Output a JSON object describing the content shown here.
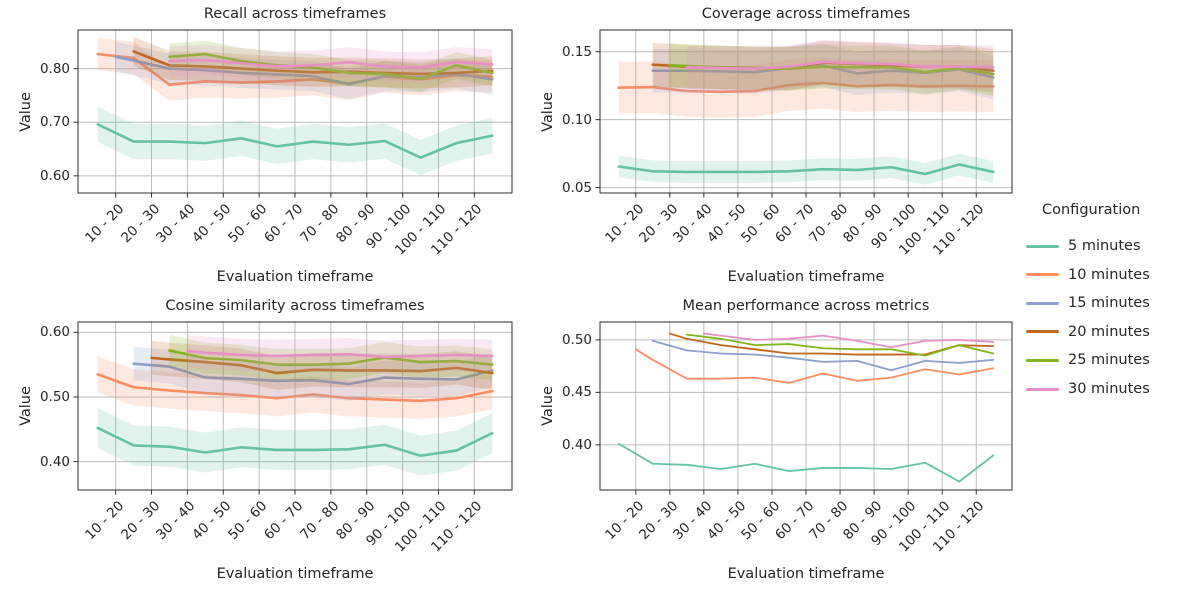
{
  "figure": {
    "background": "#ffffff",
    "text_color": "#262626",
    "grid_color": "#bdbdbd",
    "spine_color": "#2e2e2e"
  },
  "x_axis": {
    "label": "Evaluation timeframe",
    "xlim": [
      4.5,
      125.5
    ],
    "tick_positions": [
      15,
      25,
      35,
      45,
      55,
      65,
      75,
      85,
      95,
      105,
      115
    ],
    "tick_labels": [
      "10 - 20",
      "20 - 30",
      "30 - 40",
      "40 - 50",
      "50 - 60",
      "60 - 70",
      "70 - 80",
      "80 - 90",
      "90 - 100",
      "100 - 110",
      "110 - 120"
    ]
  },
  "y_axis_label": "Value",
  "legend": {
    "title": "Configuration",
    "items": [
      {
        "label": "5 minutes",
        "color": "#66c2a5"
      },
      {
        "label": "10 minutes",
        "color": "#fc8d62"
      },
      {
        "label": "15 minutes",
        "color": "#8da0cb"
      },
      {
        "label": "20 minutes",
        "color": "#c0661f"
      },
      {
        "label": "25 minutes",
        "color": "#84b41e"
      },
      {
        "label": "30 minutes",
        "color": "#e88fc6"
      }
    ]
  },
  "chart_data": [
    {
      "type": "line",
      "title": "Recall across timeframes",
      "xlabel": "Evaluation timeframe",
      "ylabel": "Value",
      "grid": true,
      "line_width": 2.6,
      "ylim": [
        0.568,
        0.872
      ],
      "yticks": [
        0.6,
        0.7,
        0.8
      ],
      "ytick_labels": [
        "0.60",
        "0.70",
        "0.80"
      ],
      "series": [
        {
          "name": "5 minutes",
          "color": "#66c2a5",
          "x_start": 10,
          "band": 0.033,
          "values": [
            0.696,
            0.664,
            0.664,
            0.661,
            0.67,
            0.655,
            0.664,
            0.658,
            0.665,
            0.634,
            0.661,
            0.675
          ]
        },
        {
          "name": "10 minutes",
          "color": "#fc8d62",
          "x_start": 10,
          "band": 0.03,
          "values": [
            0.827,
            0.82,
            0.77,
            0.776,
            0.774,
            0.776,
            0.78,
            0.772,
            0.785,
            0.78,
            0.788,
            0.785
          ]
        },
        {
          "name": "15 minutes",
          "color": "#8da0cb",
          "x_start": 15,
          "band": 0.028,
          "values": [
            0.822,
            0.815,
            0.8,
            0.797,
            0.792,
            0.789,
            0.786,
            0.771,
            0.786,
            0.784,
            0.79,
            0.78
          ]
        },
        {
          "name": "20 minutes",
          "color": "#c0661f",
          "x_start": 20,
          "band": 0.027,
          "values": [
            0.832,
            0.806,
            0.804,
            0.8,
            0.796,
            0.793,
            0.794,
            0.792,
            0.79,
            0.792,
            0.796
          ]
        },
        {
          "name": "25 minutes",
          "color": "#84b41e",
          "x_start": 30,
          "band": 0.025,
          "values": [
            0.822,
            0.827,
            0.814,
            0.806,
            0.802,
            0.792,
            0.79,
            0.781,
            0.806,
            0.792
          ]
        },
        {
          "name": "30 minutes",
          "color": "#e88fc6",
          "x_start": 30,
          "band": 0.028,
          "values": [
            0.814,
            0.816,
            0.81,
            0.804,
            0.806,
            0.812,
            0.804,
            0.802,
            0.812,
            0.808
          ]
        }
      ]
    },
    {
      "type": "line",
      "title": "Coverage across timeframes",
      "xlabel": "Evaluation timeframe",
      "ylabel": "Value",
      "grid": true,
      "line_width": 2.6,
      "ylim": [
        0.046,
        0.166
      ],
      "yticks": [
        0.05,
        0.1,
        0.15
      ],
      "ytick_labels": [
        "0.05",
        "0.10",
        "0.15"
      ],
      "series": [
        {
          "name": "5 minutes",
          "color": "#66c2a5",
          "x_start": 10,
          "band": 0.008,
          "values": [
            0.0655,
            0.062,
            0.0615,
            0.0615,
            0.0615,
            0.062,
            0.0635,
            0.063,
            0.065,
            0.06,
            0.067,
            0.0615
          ]
        },
        {
          "name": "10 minutes",
          "color": "#fc8d62",
          "x_start": 10,
          "band": 0.019,
          "values": [
            0.1235,
            0.124,
            0.121,
            0.1205,
            0.121,
            0.1255,
            0.127,
            0.1245,
            0.1255,
            0.1245,
            0.125,
            0.1245
          ]
        },
        {
          "name": "15 minutes",
          "color": "#8da0cb",
          "x_start": 20,
          "band": 0.016,
          "values": [
            0.136,
            0.136,
            0.1355,
            0.135,
            0.138,
            0.14,
            0.134,
            0.136,
            0.1345,
            0.137,
            0.131
          ]
        },
        {
          "name": "20 minutes",
          "color": "#c0661f",
          "x_start": 20,
          "band": 0.016,
          "values": [
            0.1405,
            0.139,
            0.1385,
            0.138,
            0.1375,
            0.142,
            0.141,
            0.14,
            0.139,
            0.139,
            0.136
          ]
        },
        {
          "name": "25 minutes",
          "color": "#84b41e",
          "x_start": 25,
          "band": 0.016,
          "values": [
            0.14,
            0.1395,
            0.1385,
            0.1375,
            0.1375,
            0.139,
            0.1385,
            0.1385,
            0.135,
            0.138,
            0.1335
          ]
        },
        {
          "name": "30 minutes",
          "color": "#e88fc6",
          "x_start": 30,
          "band": 0.016,
          "values": [
            0.1385,
            0.138,
            0.1375,
            0.139,
            0.1425,
            0.1415,
            0.141,
            0.139,
            0.139,
            0.1385
          ]
        }
      ]
    },
    {
      "type": "line",
      "title": "Cosine similarity across timeframes",
      "xlabel": "Evaluation timeframe",
      "ylabel": "Value",
      "grid": true,
      "line_width": 2.6,
      "ylim": [
        0.356,
        0.616
      ],
      "yticks": [
        0.4,
        0.5,
        0.6
      ],
      "ytick_labels": [
        "0.40",
        "0.50",
        "0.60"
      ],
      "series": [
        {
          "name": "5 minutes",
          "color": "#66c2a5",
          "x_start": 10,
          "band": 0.031,
          "values": [
            0.452,
            0.425,
            0.423,
            0.414,
            0.422,
            0.418,
            0.418,
            0.419,
            0.426,
            0.409,
            0.417,
            0.444
          ]
        },
        {
          "name": "10 minutes",
          "color": "#fc8d62",
          "x_start": 10,
          "band": 0.028,
          "values": [
            0.535,
            0.515,
            0.51,
            0.506,
            0.503,
            0.498,
            0.504,
            0.498,
            0.496,
            0.494,
            0.498,
            0.509
          ]
        },
        {
          "name": "15 minutes",
          "color": "#8da0cb",
          "x_start": 20,
          "band": 0.026,
          "values": [
            0.5515,
            0.547,
            0.53,
            0.528,
            0.525,
            0.526,
            0.52,
            0.53,
            0.528,
            0.527,
            0.541
          ]
        },
        {
          "name": "20 minutes",
          "color": "#c0661f",
          "x_start": 25,
          "band": 0.026,
          "values": [
            0.5605,
            0.558,
            0.554,
            0.549,
            0.537,
            0.542,
            0.541,
            0.541,
            0.54,
            0.545,
            0.537
          ]
        },
        {
          "name": "25 minutes",
          "color": "#84b41e",
          "x_start": 30,
          "band": 0.024,
          "values": [
            0.572,
            0.56,
            0.557,
            0.55,
            0.55,
            0.5515,
            0.561,
            0.554,
            0.5555,
            0.55
          ]
        },
        {
          "name": "30 minutes",
          "color": "#e88fc6",
          "x_start": 35,
          "band": 0.025,
          "values": [
            0.571,
            0.5685,
            0.565,
            0.5635,
            0.565,
            0.566,
            0.562,
            0.5635,
            0.565,
            0.5635
          ]
        }
      ]
    },
    {
      "type": "line",
      "title": "Mean performance across metrics",
      "xlabel": "Evaluation timeframe",
      "ylabel": "Value",
      "grid": true,
      "line_width": 1.8,
      "ylim": [
        0.357,
        0.517
      ],
      "yticks": [
        0.4,
        0.45,
        0.5
      ],
      "ytick_labels": [
        "0.40",
        "0.45",
        "0.50"
      ],
      "series": [
        {
          "name": "5 minutes",
          "color": "#66c2a5",
          "x_start": 10,
          "band": 0,
          "values": [
            0.401,
            0.382,
            0.381,
            0.377,
            0.382,
            0.375,
            0.378,
            0.378,
            0.377,
            0.383,
            0.365,
            0.39
          ]
        },
        {
          "name": "10 minutes",
          "color": "#fc8d62",
          "x_start": 15,
          "band": 0,
          "values": [
            0.491,
            0.481,
            0.463,
            0.463,
            0.464,
            0.459,
            0.468,
            0.461,
            0.464,
            0.472,
            0.467,
            0.473
          ]
        },
        {
          "name": "15 minutes",
          "color": "#8da0cb",
          "x_start": 20,
          "band": 0,
          "values": [
            0.499,
            0.49,
            0.487,
            0.486,
            0.483,
            0.479,
            0.48,
            0.471,
            0.48,
            0.478,
            0.481
          ]
        },
        {
          "name": "20 minutes",
          "color": "#c0661f",
          "x_start": 25,
          "band": 0,
          "values": [
            0.506,
            0.501,
            0.495,
            0.491,
            0.487,
            0.487,
            0.486,
            0.486,
            0.486,
            0.495,
            0.494
          ]
        },
        {
          "name": "25 minutes",
          "color": "#84b41e",
          "x_start": 30,
          "band": 0,
          "values": [
            0.505,
            0.501,
            0.495,
            0.496,
            0.492,
            0.491,
            0.491,
            0.485,
            0.495,
            0.487
          ]
        },
        {
          "name": "30 minutes",
          "color": "#e88fc6",
          "x_start": 35,
          "band": 0,
          "values": [
            0.506,
            0.504,
            0.5,
            0.501,
            0.504,
            0.499,
            0.493,
            0.499,
            0.5,
            0.498
          ]
        }
      ]
    }
  ]
}
